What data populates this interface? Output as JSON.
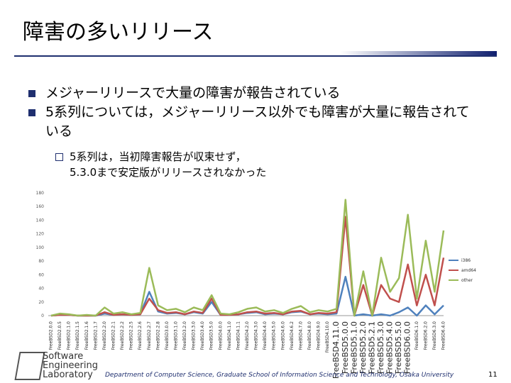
{
  "slide": {
    "title": "障害の多いリリース",
    "bullets": [
      "メジャーリリースで大量の障害が報告されている",
      "5系列については，メジャーリリース以外でも障害が大量に報告されている"
    ],
    "sub_bullet": [
      "5系列は，当初障害報告が収束せず，",
      "5.3.0まで安定版がリリースされなかった"
    ]
  },
  "chart_data": {
    "type": "line",
    "categories": [
      "FreeBSD2.0.0",
      "FreeBSD2.0.5",
      "FreeBSD2.1.0",
      "FreeBSD2.1.5",
      "FreeBSD2.1.6",
      "FreeBSD2.1.7",
      "FreeBSD2.2.0",
      "FreeBSD2.2.1",
      "FreeBSD2.2.2",
      "FreeBSD2.2.5",
      "FreeBSD2.2.6",
      "FreeBSD2.2.7",
      "FreeBSD2.2.8",
      "FreeBSD3.0.0",
      "FreeBSD3.1.0",
      "FreeBSD3.2.0",
      "FreeBSD3.3.0",
      "FreeBSD3.4.0",
      "FreeBSD3.5.0",
      "FreeBSD4.0.0",
      "FreeBSD4.1.0",
      "FreeBSD4.1.1",
      "FreeBSD4.2.0",
      "FreeBSD4.3.0",
      "FreeBSD4.4.0",
      "FreeBSD4.5.0",
      "FreeBSD4.6.0",
      "FreeBSD4.6.2",
      "FreeBSD4.7.0",
      "FreeBSD4.8.0",
      "FreeBSD4.9.0",
      "FreeBSD4.10.0",
      "FreeBSD4.11.0",
      "FreeBSD5.0.0",
      "FreeBSD5.1.0",
      "FreeBSD5.2.0",
      "FreeBSD5.2.1",
      "FreeBSD5.3.0",
      "FreeBSD5.4.0",
      "FreeBSD5.5.0",
      "FreeBSD6.0.0",
      "FreeBSD6.1.0",
      "FreeBSD6.2.0",
      "FreeBSD6.3.0",
      "FreeBSD6.4.0"
    ],
    "series": [
      {
        "name": "i386",
        "color": "#4f81bd",
        "values": [
          0,
          1,
          1,
          0,
          0,
          0,
          3,
          1,
          2,
          1,
          2,
          35,
          6,
          3,
          4,
          2,
          5,
          3,
          20,
          1,
          1,
          2,
          4,
          5,
          2,
          3,
          2,
          5,
          6,
          2,
          3,
          2,
          3,
          57,
          0,
          2,
          0,
          2,
          0,
          5,
          12,
          0,
          15,
          2,
          15
        ]
      },
      {
        "name": "amd64",
        "color": "#c0504d",
        "values": [
          0,
          1,
          1,
          0,
          0,
          0,
          5,
          1,
          2,
          1,
          2,
          25,
          8,
          4,
          5,
          2,
          6,
          4,
          25,
          1,
          1,
          2,
          5,
          6,
          3,
          4,
          2,
          6,
          7,
          2,
          4,
          3,
          5,
          145,
          0,
          45,
          0,
          45,
          25,
          20,
          75,
          15,
          60,
          15,
          85
        ]
      },
      {
        "name": "other",
        "color": "#9bbb59",
        "values": [
          0,
          3,
          2,
          0,
          1,
          0,
          12,
          3,
          5,
          2,
          4,
          70,
          15,
          8,
          10,
          5,
          12,
          8,
          30,
          3,
          2,
          5,
          10,
          12,
          6,
          8,
          4,
          10,
          14,
          5,
          8,
          6,
          10,
          170,
          0,
          65,
          0,
          85,
          35,
          55,
          148,
          25,
          110,
          35,
          125
        ]
      }
    ],
    "ylim": [
      0,
      180
    ],
    "yticks": [
      0,
      20,
      40,
      60,
      80,
      100,
      120,
      140,
      160,
      180
    ],
    "grid": false,
    "legend": "right"
  },
  "footer": {
    "lab": [
      "Software",
      "Engineering",
      "Laboratory"
    ],
    "department": "Department of Computer Science, Graduate School of Information Science and Technology, Osaka University",
    "page": "11"
  }
}
